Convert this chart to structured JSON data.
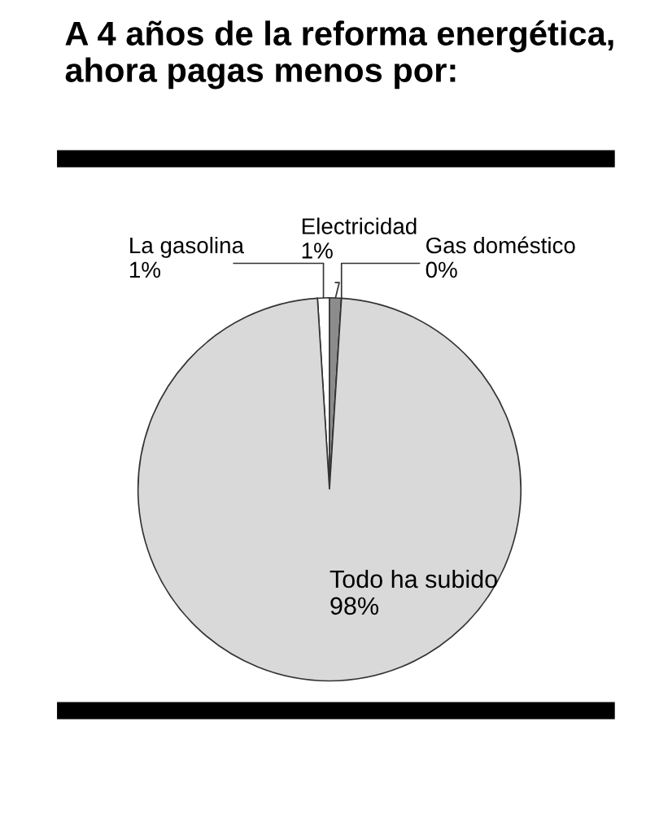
{
  "chart_data": {
    "type": "pie",
    "title": "A 4 años de la reforma energética, ahora pagas menos por:",
    "categories": [
      "La gasolina",
      "Electricidad",
      "Gas doméstico",
      "Todo ha subido"
    ],
    "values": [
      1,
      1,
      0,
      98
    ],
    "value_labels": [
      "1%",
      "1%",
      "0%",
      "98%"
    ],
    "colors": [
      "#ffffff",
      "#8c8c8c",
      "#595959",
      "#d9d9d9"
    ]
  }
}
